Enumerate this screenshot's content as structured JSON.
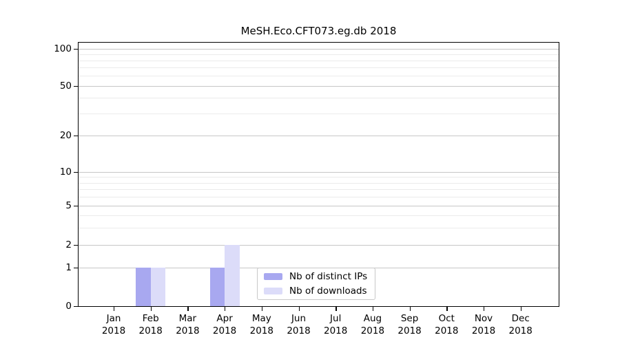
{
  "chart_data": {
    "type": "bar",
    "title": "MeSH.Eco.CFT073.eg.db 2018",
    "categories": [
      "Jan",
      "Feb",
      "Mar",
      "Apr",
      "May",
      "Jun",
      "Jul",
      "Aug",
      "Sep",
      "Oct",
      "Nov",
      "Dec"
    ],
    "category_year": "2018",
    "series": [
      {
        "name": "Nb of distinct IPs",
        "color": "#a8a8f0",
        "values": [
          0,
          1,
          0,
          1,
          0,
          0,
          0,
          0,
          0,
          0,
          0,
          0
        ]
      },
      {
        "name": "Nb of downloads",
        "color": "#dcdcf9",
        "values": [
          0,
          1,
          0,
          2,
          0,
          0,
          0,
          0,
          0,
          0,
          0,
          0
        ]
      }
    ],
    "yscale": "symlog",
    "ylim": [
      0,
      100
    ],
    "y_major_ticks": [
      0,
      1,
      2,
      5,
      10,
      20,
      50,
      100
    ],
    "y_minor_gridlines": [
      3,
      4,
      6,
      7,
      8,
      9,
      30,
      40,
      60,
      70,
      80,
      90
    ],
    "grid": true,
    "legend_position": "lower center",
    "colors": {
      "axis": "#000000",
      "grid_major": "#c6c6c6",
      "grid_minor": "#ebebeb",
      "legend_border": "#c8c8c8",
      "background": "#ffffff"
    }
  }
}
